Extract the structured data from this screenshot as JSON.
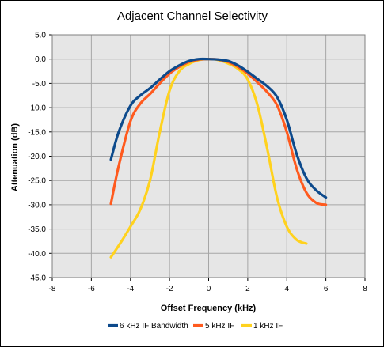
{
  "chart_data": {
    "type": "line",
    "title": "Adjacent Channel Selectivity",
    "xlabel": "Offset Frequency (kHz)",
    "ylabel": "Attenuation  (dB)",
    "xlim": [
      -8,
      8
    ],
    "ylim": [
      -45,
      5
    ],
    "x_ticks": [
      -8,
      -6,
      -4,
      -2,
      0,
      2,
      4,
      6,
      8
    ],
    "x_tick_labels": [
      "-8",
      "-6",
      "-4",
      "-2",
      "0",
      "2",
      "4",
      "6",
      "8"
    ],
    "y_ticks": [
      5,
      0,
      -5,
      -10,
      -15,
      -20,
      -25,
      -30,
      -35,
      -40,
      -45
    ],
    "y_tick_labels": [
      "5.0",
      "0.0",
      "-5.0",
      "-10.0",
      "-15.0",
      "-20.0",
      "-25.0",
      "-30.0",
      "-35.0",
      "-40.0",
      "-45.0"
    ],
    "grid": true,
    "legend_position": "bottom",
    "plot_background": "#e6e6e6",
    "grid_color": "#a6a6a6",
    "series": [
      {
        "name": "6 kHz IF Bandwidth",
        "color": "#0d4a8c",
        "x": [
          -5,
          -4.6,
          -4,
          -3.5,
          -3,
          -2.5,
          -2,
          -1.5,
          -1,
          -0.5,
          0,
          0.5,
          1,
          1.5,
          2,
          2.5,
          3,
          3.5,
          4,
          4.5,
          5,
          5.5,
          6
        ],
        "y": [
          -20.7,
          -15.0,
          -9.6,
          -7.5,
          -6.0,
          -4.2,
          -2.5,
          -1.3,
          -0.4,
          0.0,
          0.0,
          -0.1,
          -0.4,
          -1.3,
          -2.6,
          -4.1,
          -5.6,
          -7.8,
          -12.5,
          -19.5,
          -24.5,
          -27.0,
          -28.5
        ]
      },
      {
        "name": "5 kHz IF",
        "color": "#ff5a1e",
        "x": [
          -5,
          -4.6,
          -4,
          -3.5,
          -3,
          -2.5,
          -2,
          -1.5,
          -1,
          -0.5,
          0,
          0.5,
          1,
          1.5,
          2,
          2.5,
          3,
          3.5,
          4,
          4.5,
          5,
          5.5,
          6
        ],
        "y": [
          -29.8,
          -22.0,
          -12.8,
          -9.2,
          -7.2,
          -5.0,
          -3.0,
          -1.6,
          -0.6,
          -0.1,
          0.0,
          -0.1,
          -0.6,
          -1.6,
          -3.0,
          -4.8,
          -6.8,
          -9.5,
          -15.0,
          -22.5,
          -27.5,
          -29.6,
          -30.0
        ]
      },
      {
        "name": "1 kHz IF",
        "color": "#ffd21e",
        "x": [
          -5,
          -4.5,
          -4,
          -3.5,
          -3,
          -2.5,
          -2,
          -1.5,
          -1,
          -0.5,
          0,
          0.5,
          1,
          1.5,
          2,
          2.5,
          3,
          3.5,
          4,
          4.5,
          5
        ],
        "y": [
          -40.8,
          -37.8,
          -34.5,
          -31.0,
          -25.0,
          -15.0,
          -6.5,
          -2.5,
          -1.0,
          -0.2,
          0.0,
          -0.2,
          -0.9,
          -2.0,
          -4.2,
          -9.5,
          -18.5,
          -28.5,
          -34.5,
          -37.2,
          -38.0
        ]
      }
    ]
  }
}
